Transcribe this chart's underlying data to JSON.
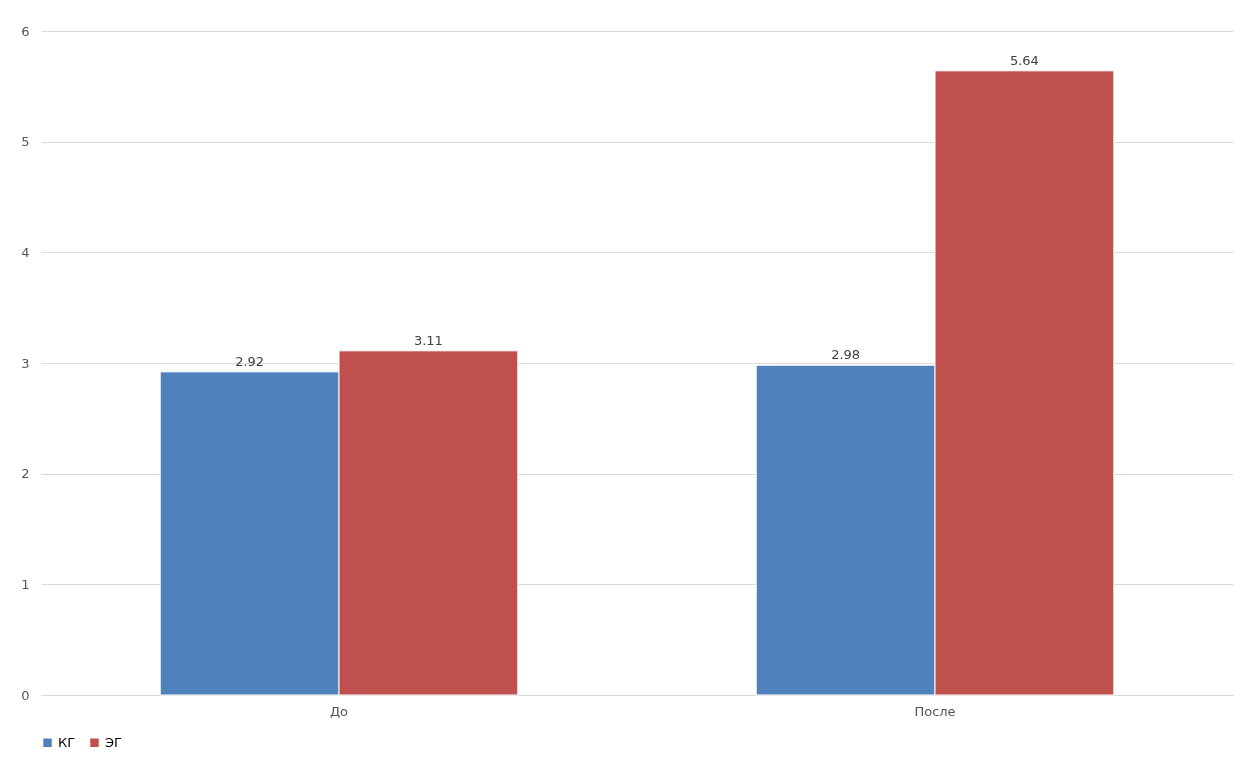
{
  "chart_data": {
    "type": "bar",
    "categories": [
      "До",
      "После"
    ],
    "series": [
      {
        "name": "КГ",
        "color": "#4f81bd",
        "values": [
          2.92,
          2.98
        ]
      },
      {
        "name": "ЭГ",
        "color": "#c0504d",
        "values": [
          3.11,
          5.64
        ]
      }
    ],
    "ylim": [
      0,
      6
    ],
    "yticks": [
      0,
      1,
      2,
      3,
      4,
      5,
      6
    ],
    "grid": "y",
    "legend": "bottom",
    "data_labels": true
  }
}
